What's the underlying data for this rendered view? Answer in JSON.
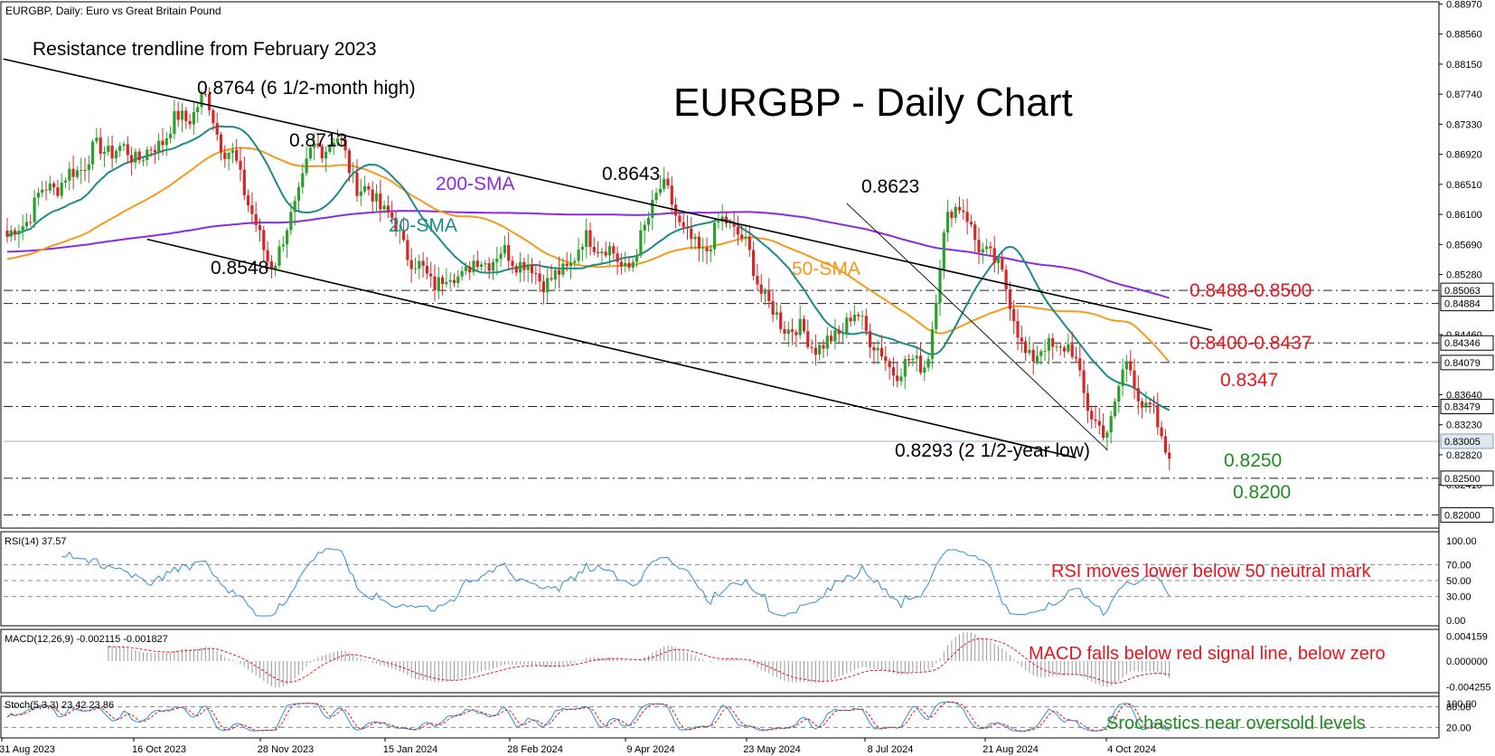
{
  "header": {
    "symbol_info": "EURGBP, Daily:  Euro vs Great Britain Pound"
  },
  "chart_data": {
    "type": "candlestick",
    "title": "EURGBP - Daily Chart",
    "ylim": [
      0.8182,
      0.89
    ],
    "price_ticks": [
      "0.88970",
      "0.88560",
      "0.88150",
      "0.87740",
      "0.87330",
      "0.86920",
      "0.86510",
      "0.86100",
      "0.85690",
      "0.85280",
      "0.84460",
      "0.83640",
      "0.83230",
      "0.82820",
      "0.82410"
    ],
    "x_labels": [
      "31 Aug 2023",
      "16 Oct 2023",
      "28 Nov 2023",
      "15 Jan 2024",
      "28 Feb 2024",
      "9 Apr 2024",
      "23 May 2024",
      "8 Jul 2024",
      "21 Aug 2024",
      "4 Oct 2024"
    ],
    "levels": [
      {
        "price": 0.85063,
        "label": "0.85063"
      },
      {
        "price": 0.84884,
        "label": "0.84884"
      },
      {
        "price": 0.84346,
        "label": "0.84346"
      },
      {
        "price": 0.84079,
        "label": "0.84079"
      },
      {
        "price": 0.83479,
        "label": "0.83479"
      },
      {
        "price": 0.825,
        "label": "0.82500"
      },
      {
        "price": 0.82,
        "label": "0.82000"
      }
    ],
    "current_price": {
      "price": 0.83005,
      "label": "0.83005"
    },
    "annotations": {
      "resistance": "Resistance trendline from February 2023",
      "high_8764": "0.8764 (6 1/2-month high)",
      "p8713": "0.8713",
      "p8643": "0.8643",
      "p8623": "0.8623",
      "p8548": "0.8548",
      "sma200": "200-SMA",
      "sma20": "20-SMA",
      "sma50": "50-SMA",
      "r1": "0.8488-0.8500",
      "r2": "0.8400-0.8437",
      "r3": "0.8347",
      "low": "0.8293 (2 1/2-year low)",
      "s1": "0.8250",
      "s2": "0.8200"
    },
    "swing_points": [
      {
        "bar": 0,
        "price": 0.858
      },
      {
        "bar": 12,
        "price": 0.865
      },
      {
        "bar": 25,
        "price": 0.87
      },
      {
        "bar": 35,
        "price": 0.869
      },
      {
        "bar": 45,
        "price": 0.874
      },
      {
        "bar": 51,
        "price": 0.8764
      },
      {
        "bar": 57,
        "price": 0.869
      },
      {
        "bar": 68,
        "price": 0.8548
      },
      {
        "bar": 80,
        "price": 0.87
      },
      {
        "bar": 84,
        "price": 0.8713
      },
      {
        "bar": 92,
        "price": 0.864
      },
      {
        "bar": 110,
        "price": 0.852
      },
      {
        "bar": 128,
        "price": 0.8555
      },
      {
        "bar": 140,
        "price": 0.852
      },
      {
        "bar": 150,
        "price": 0.8575
      },
      {
        "bar": 160,
        "price": 0.854
      },
      {
        "bar": 168,
        "price": 0.8643
      },
      {
        "bar": 178,
        "price": 0.856
      },
      {
        "bar": 185,
        "price": 0.86
      },
      {
        "bar": 200,
        "price": 0.846
      },
      {
        "bar": 210,
        "price": 0.843
      },
      {
        "bar": 218,
        "price": 0.847
      },
      {
        "bar": 228,
        "price": 0.84
      },
      {
        "bar": 236,
        "price": 0.841
      },
      {
        "bar": 243,
        "price": 0.8623
      },
      {
        "bar": 255,
        "price": 0.854
      },
      {
        "bar": 262,
        "price": 0.842
      },
      {
        "bar": 272,
        "price": 0.843
      },
      {
        "bar": 282,
        "price": 0.831
      },
      {
        "bar": 288,
        "price": 0.84
      },
      {
        "bar": 294,
        "price": 0.834
      },
      {
        "bar": 298,
        "price": 0.8293
      }
    ],
    "rsi": {
      "label": "RSI(14) 37.57",
      "ticks": [
        "100.00",
        "70.00",
        "50.00",
        "30.00",
        "0.00"
      ],
      "note": "RSI moves lower below 50 neutral mark"
    },
    "macd": {
      "label": "MACD(12,26,9) -0.002115 -0.001827",
      "ticks": [
        "0.004159",
        "0.000000",
        "-0.004255"
      ],
      "note": "MACD falls below red signal line, below zero"
    },
    "stoch": {
      "label": "Stoch(5,3,3) 23.42 23.86",
      "ticks": [
        "100.00",
        "80.00",
        "20.00"
      ],
      "note": "Srochastics near oversold levels"
    },
    "colors": {
      "up": "#2ca02c",
      "down": "#d62728",
      "sma20": "#1b8a8a",
      "sma50": "#f59a1a",
      "sma200": "#8a2be2",
      "red_text": "#e8141e",
      "green_text": "#1e8c1e",
      "rsi_line": "#2f8fd6"
    }
  }
}
